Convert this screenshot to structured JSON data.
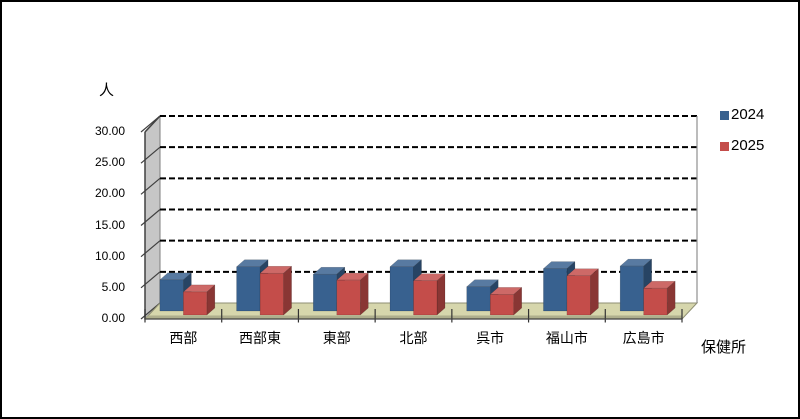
{
  "window": {
    "background": "#ffffff",
    "border_color": "#000000"
  },
  "chart_data": {
    "type": "bar",
    "subtype": "3d-clustered-column",
    "title": "",
    "xlabel": "保健所",
    "ylabel": "人",
    "categories": [
      "西部",
      "西部東",
      "東部",
      "北部",
      "呉市",
      "福山市",
      "広島市"
    ],
    "series": [
      {
        "name": "2024",
        "color": "#38618F",
        "values": [
          5.0,
          7.1,
          5.9,
          7.1,
          3.9,
          6.8,
          7.2
        ]
      },
      {
        "name": "2025",
        "color": "#C44D4A",
        "values": [
          3.7,
          6.7,
          5.6,
          5.5,
          3.3,
          6.3,
          4.3
        ]
      }
    ],
    "ylim": [
      0,
      30
    ],
    "ytick_step": 5,
    "ytick_labels": [
      "0.00",
      "5.00",
      "10.00",
      "15.00",
      "20.00",
      "25.00",
      "30.00"
    ],
    "grid": "dashed-horizontal",
    "gridline_color": "#000000",
    "legend_position": "right-top",
    "wall_color": "#C6C6C6",
    "floor_color": "#D6D6AC"
  }
}
